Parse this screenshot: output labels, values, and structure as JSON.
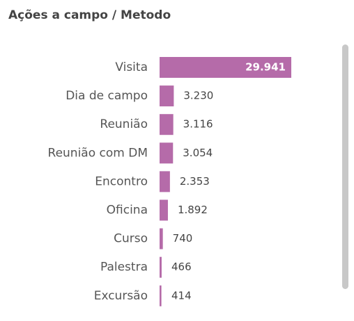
{
  "chart_data": {
    "type": "barh",
    "title": "Ações a campo / Metodo",
    "categories": [
      "Visita",
      "Dia de campo",
      "Reunião",
      "Reunião com DM",
      "Encontro",
      "Oficina",
      "Curso",
      "Palestra",
      "Excursão"
    ],
    "values": [
      29941,
      3230,
      3116,
      3054,
      2353,
      1892,
      740,
      466,
      414
    ],
    "value_labels": [
      "29.941",
      "3.230",
      "3.116",
      "3.054",
      "2.353",
      "1.892",
      "740",
      "466",
      "414"
    ],
    "color": "#b56ba9"
  }
}
